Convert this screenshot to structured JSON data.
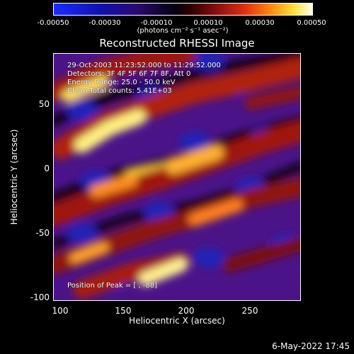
{
  "colorbar": {
    "ticks": [
      "-0.00050",
      "-0.00030",
      "-0.00010",
      "0.00010",
      "0.00030",
      "0.00050"
    ],
    "unit_label": "(photons cm⁻² s⁻¹ asec⁻²)"
  },
  "chart_data": {
    "type": "heatmap",
    "title": "Reconstructed RHESSI Image",
    "xlabel": "Heliocentric X (arcsec)",
    "ylabel": "Heliocentric Y (arcsec)",
    "xlim": [
      90,
      290
    ],
    "ylim": [
      -102,
      98
    ],
    "x_ticks": [
      "100",
      "150",
      "200",
      "250"
    ],
    "y_ticks": [
      "50",
      "0",
      "-50",
      "-100"
    ],
    "colorscale_range": [
      -0.0005,
      0.0005
    ],
    "info_lines": [
      "29-Oct-2003 11:23:52.000 to 11:29:52.000",
      "Detectors: 3F 4F 5F 6F 7F 8F, Att 0",
      "Energy Range: 25.0 - 50.0 keV",
      "Clean     Total counts: 5.41E+03"
    ],
    "peak_label": "Position of Peak = [    , -88]"
  },
  "footer": {
    "date": "6-May-2022 17:45"
  }
}
